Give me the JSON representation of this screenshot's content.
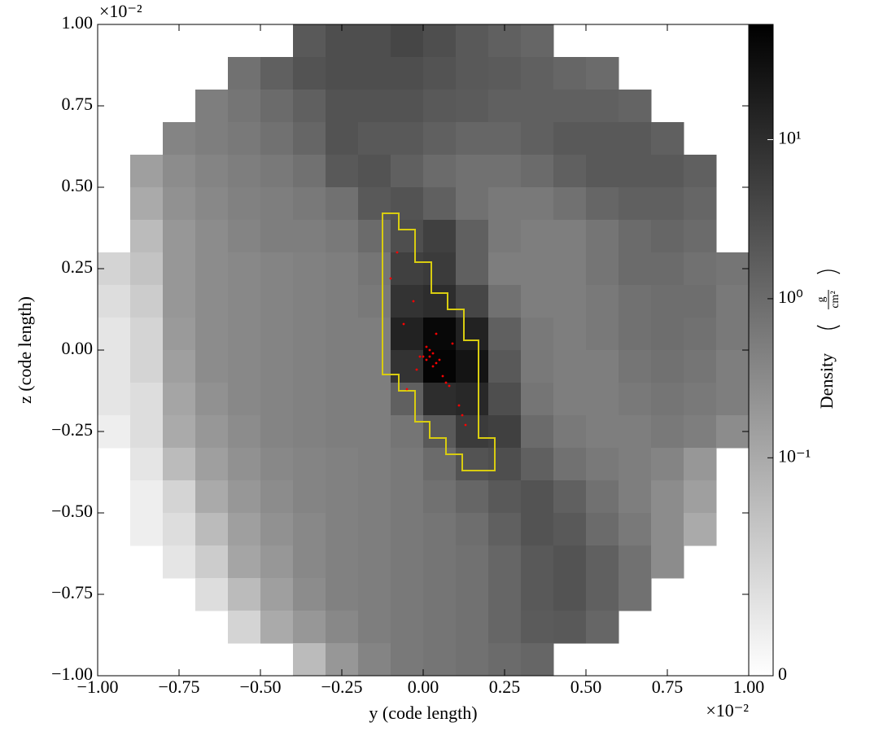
{
  "chart_data": {
    "type": "heatmap",
    "x_label": "y  (code length)",
    "y_label": "z  (code length)",
    "x_offset_text": "×10⁻²",
    "y_offset_text": "×10⁻²",
    "xlim": [
      -0.01,
      0.01
    ],
    "ylim": [
      -0.01,
      0.01
    ],
    "xticks": [
      {
        "value": -0.01,
        "label": "−1.00"
      },
      {
        "value": -0.0075,
        "label": "−0.75"
      },
      {
        "value": -0.005,
        "label": "−0.50"
      },
      {
        "value": -0.0025,
        "label": "−0.25"
      },
      {
        "value": 0,
        "label": "0.00"
      },
      {
        "value": 0.0025,
        "label": "0.25"
      },
      {
        "value": 0.005,
        "label": "0.50"
      },
      {
        "value": 0.0075,
        "label": "0.75"
      },
      {
        "value": 0.01,
        "label": "1.00"
      }
    ],
    "yticks": [
      {
        "value": -0.01,
        "label": "−1.00"
      },
      {
        "value": -0.0075,
        "label": "−0.75"
      },
      {
        "value": -0.005,
        "label": "−0.50"
      },
      {
        "value": -0.0025,
        "label": "−0.25"
      },
      {
        "value": 0,
        "label": "0.00"
      },
      {
        "value": 0.0025,
        "label": "0.25"
      },
      {
        "value": 0.005,
        "label": "0.50"
      },
      {
        "value": 0.0075,
        "label": "0.75"
      },
      {
        "value": 0.01,
        "label": "1.00"
      }
    ],
    "colorbar_label": "Density",
    "colorbar_units": {
      "numerator": "g",
      "denominator": "cm²"
    },
    "zscale": "symlog",
    "linthresh": 0.1,
    "zlim": [
      0,
      53
    ],
    "zticks": [
      {
        "value": 0,
        "label": "0"
      },
      {
        "value": 0.1,
        "label": "10⁻¹"
      },
      {
        "value": 1,
        "label": "10⁰"
      },
      {
        "value": 10,
        "label": "10¹"
      }
    ],
    "x": [
      -0.0095,
      -0.0085,
      -0.0075,
      -0.0065,
      -0.0055,
      -0.0045,
      -0.0035,
      -0.0025,
      -0.0015,
      -0.0005,
      0.0005,
      0.0015,
      0.0025,
      0.0035,
      0.0045,
      0.0055,
      0.0065,
      0.0075,
      0.0085,
      0.0095
    ],
    "y": [
      0.0095,
      0.0085,
      0.0075,
      0.0065,
      0.0055,
      0.0045,
      0.0035,
      0.0025,
      0.0015,
      0.0005,
      -0.0005,
      -0.0015,
      -0.0025,
      -0.0035,
      -0.0045,
      -0.0055,
      -0.0065,
      -0.0075,
      -0.0085,
      -0.0095
    ],
    "values": [
      [
        null,
        null,
        null,
        null,
        null,
        null,
        2,
        3,
        3,
        4,
        3,
        2,
        1.5,
        1.2,
        null,
        null,
        null,
        null,
        null,
        null
      ],
      [
        null,
        null,
        null,
        null,
        0.8,
        1.5,
        2.5,
        3,
        3,
        3,
        2.5,
        2,
        1.8,
        1.5,
        1.2,
        1.0,
        null,
        null,
        null,
        null
      ],
      [
        null,
        null,
        null,
        0.5,
        0.7,
        1,
        1.5,
        2.5,
        2.5,
        2.5,
        2,
        1.8,
        1.5,
        1.5,
        1.5,
        1.5,
        1.3,
        null,
        null,
        null
      ],
      [
        null,
        null,
        0.4,
        0.5,
        0.6,
        0.8,
        1.2,
        2.5,
        2,
        2,
        1.5,
        1.2,
        1.2,
        1.5,
        2,
        2,
        2,
        1.5,
        null,
        null
      ],
      [
        null,
        0.15,
        0.3,
        0.4,
        0.5,
        0.6,
        0.8,
        2,
        2.5,
        1.5,
        1,
        0.8,
        0.8,
        1,
        1.5,
        2,
        2,
        2,
        1.5,
        null
      ],
      [
        null,
        0.1,
        0.25,
        0.35,
        0.45,
        0.5,
        0.6,
        0.8,
        2,
        2.5,
        1.5,
        0.8,
        0.6,
        0.6,
        0.8,
        1.2,
        1.5,
        1.5,
        1.2,
        null
      ],
      [
        null,
        0.08,
        0.2,
        0.3,
        0.4,
        0.5,
        0.5,
        0.6,
        1,
        3,
        5,
        1.5,
        0.6,
        0.5,
        0.5,
        0.7,
        1,
        1.2,
        1,
        null
      ],
      [
        0.05,
        0.07,
        0.2,
        0.3,
        0.35,
        0.4,
        0.45,
        0.5,
        0.7,
        5,
        6,
        1.5,
        0.5,
        0.5,
        0.5,
        0.7,
        1,
        1,
        0.8,
        0.7
      ],
      [
        0.04,
        0.06,
        0.2,
        0.3,
        0.35,
        0.4,
        0.45,
        0.5,
        0.6,
        8,
        10,
        4,
        0.8,
        0.5,
        0.5,
        0.6,
        0.8,
        0.9,
        0.9,
        0.6
      ],
      [
        0.03,
        0.05,
        0.18,
        0.3,
        0.35,
        0.4,
        0.45,
        0.5,
        0.5,
        15,
        40,
        15,
        1.5,
        0.6,
        0.5,
        0.6,
        0.8,
        0.9,
        0.8,
        0.6
      ],
      [
        0.03,
        0.05,
        0.15,
        0.3,
        0.35,
        0.4,
        0.45,
        0.5,
        0.5,
        8,
        45,
        25,
        2,
        0.6,
        0.5,
        0.5,
        0.7,
        0.8,
        0.7,
        0.5
      ],
      [
        0.03,
        0.04,
        0.12,
        0.25,
        0.35,
        0.4,
        0.45,
        0.5,
        0.5,
        1.5,
        10,
        12,
        3,
        0.7,
        0.5,
        0.5,
        0.6,
        0.7,
        0.6,
        0.5
      ],
      [
        0.02,
        0.04,
        0.1,
        0.2,
        0.3,
        0.4,
        0.45,
        0.5,
        0.5,
        0.7,
        2,
        6,
        5,
        1,
        0.6,
        0.5,
        0.5,
        0.6,
        0.5,
        0.3
      ],
      [
        null,
        0.03,
        0.08,
        0.15,
        0.25,
        0.35,
        0.4,
        0.45,
        0.5,
        0.6,
        1,
        2.5,
        3,
        1.5,
        0.8,
        0.6,
        0.5,
        0.4,
        0.2,
        null
      ],
      [
        null,
        0.02,
        0.05,
        0.1,
        0.2,
        0.3,
        0.4,
        0.45,
        0.5,
        0.6,
        0.8,
        1.2,
        2,
        2.5,
        1.5,
        0.8,
        0.5,
        0.3,
        0.15,
        null
      ],
      [
        null,
        0.02,
        0.04,
        0.08,
        0.15,
        0.25,
        0.35,
        0.45,
        0.5,
        0.6,
        0.7,
        0.9,
        1.5,
        2.5,
        2,
        1,
        0.6,
        0.3,
        0.1,
        null
      ],
      [
        null,
        null,
        0.03,
        0.06,
        0.12,
        0.2,
        0.35,
        0.45,
        0.5,
        0.6,
        0.7,
        0.8,
        1.2,
        2,
        2.5,
        1.5,
        0.8,
        0.3,
        null,
        null
      ],
      [
        null,
        null,
        null,
        0.04,
        0.08,
        0.15,
        0.3,
        0.45,
        0.5,
        0.6,
        0.7,
        0.8,
        1.2,
        2,
        2.5,
        1.5,
        0.8,
        null,
        null,
        null
      ],
      [
        null,
        null,
        null,
        null,
        0.05,
        0.1,
        0.2,
        0.35,
        0.5,
        0.6,
        0.7,
        0.8,
        1.2,
        1.8,
        2,
        1.2,
        null,
        null,
        null,
        null
      ],
      [
        null,
        null,
        null,
        null,
        null,
        null,
        0.08,
        0.2,
        0.4,
        0.6,
        0.7,
        0.8,
        1,
        1.2,
        null,
        null,
        null,
        null,
        null,
        null
      ]
    ],
    "contour": {
      "color": "#d8cc10",
      "x": [
        -0.00125,
        -0.00075,
        -0.00075,
        -0.00025,
        -0.00025,
        0.00025,
        0.00025,
        0.00075,
        0.00075,
        0.00125,
        0.00125,
        0.0017,
        0.0017,
        0.0022,
        0.0022,
        0.0012,
        0.0012,
        0.0007,
        0.0007,
        0.0002,
        0.0002,
        -0.00025,
        -0.00025,
        -0.00075,
        -0.00075,
        -0.00125
      ],
      "y": [
        0.0042,
        0.0042,
        0.0037,
        0.0037,
        0.0027,
        0.0027,
        0.00175,
        0.00175,
        0.00125,
        0.00125,
        0.0003,
        0.0003,
        -0.0027,
        -0.0027,
        -0.0037,
        -0.0037,
        -0.0032,
        -0.0032,
        -0.0027,
        -0.0027,
        -0.0022,
        -0.0022,
        -0.00125,
        -0.00125,
        -0.00075,
        -0.00075
      ]
    },
    "points": {
      "color": "#ff0000",
      "x": [
        0.0002,
        0.0001,
        0.0003,
        0.0,
        0.0004,
        0.0002,
        -0.0001,
        0.0005,
        0.0003,
        0.0001,
        -0.0003,
        -0.0008,
        -0.0006,
        0.0007,
        0.0006,
        0.0012,
        0.0011,
        0.0004,
        -0.001,
        -0.0005,
        0.0009,
        0.0013,
        -0.0002,
        0.0008
      ],
      "y": [
        -0.0002,
        -0.0003,
        -0.0001,
        -0.0002,
        -0.0004,
        0.0,
        -0.0002,
        -0.0003,
        -0.0005,
        0.0001,
        0.0015,
        0.003,
        0.0008,
        -0.001,
        -0.0008,
        -0.002,
        -0.0017,
        0.0005,
        0.0022,
        -0.0012,
        0.0002,
        -0.0023,
        -0.0006,
        -0.0011
      ]
    }
  }
}
